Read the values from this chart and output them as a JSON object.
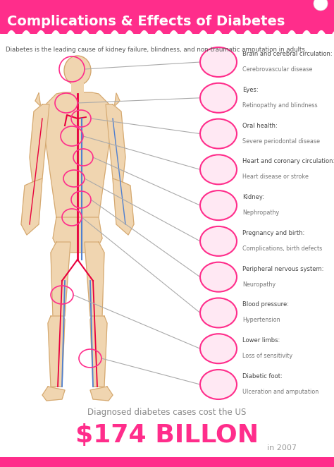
{
  "title": "Complications & Effects of Diabetes",
  "subtitle": "Diabetes is the leading cause of kidney failure, blindness, and non-traumatic amputation in adults.",
  "bg_color": "#FFFFFF",
  "pink": "#FF2D8B",
  "light_pink": "#FFE8F3",
  "text_dark": "#555555",
  "text_light": "#777777",
  "body_fill": "#F0D5B0",
  "body_edge": "#D4A870",
  "red_vessel": "#E8003D",
  "blue_vessel": "#5080D0",
  "complications": [
    {
      "title": "Brain and cerebral circulation:",
      "desc": "Cerebrovascular disease"
    },
    {
      "title": "Eyes:",
      "desc": "Retinopathy and blindness"
    },
    {
      "title": "Oral health:",
      "desc": "Severe periodontal disease"
    },
    {
      "title": "Heart and coronary circulation:",
      "desc": "Heart disease or stroke"
    },
    {
      "title": "Kidney:",
      "desc": "Nephropathy"
    },
    {
      "title": "Pregnancy and birth:",
      "desc": "Complications, birth defects"
    },
    {
      "title": "Peripheral nervous system:",
      "desc": "Neuropathy"
    },
    {
      "title": "Blood pressure:",
      "desc": "Hypertension"
    },
    {
      "title": "Lower limbs:",
      "desc": "Loss of sensitivity"
    },
    {
      "title": "Diabetic foot:",
      "desc": "Ulceration and amputation"
    }
  ],
  "footer_line1": "Diagnosed diabetes cases cost the US",
  "footer_amount": "$174 BILLON",
  "footer_year": "in 2007"
}
